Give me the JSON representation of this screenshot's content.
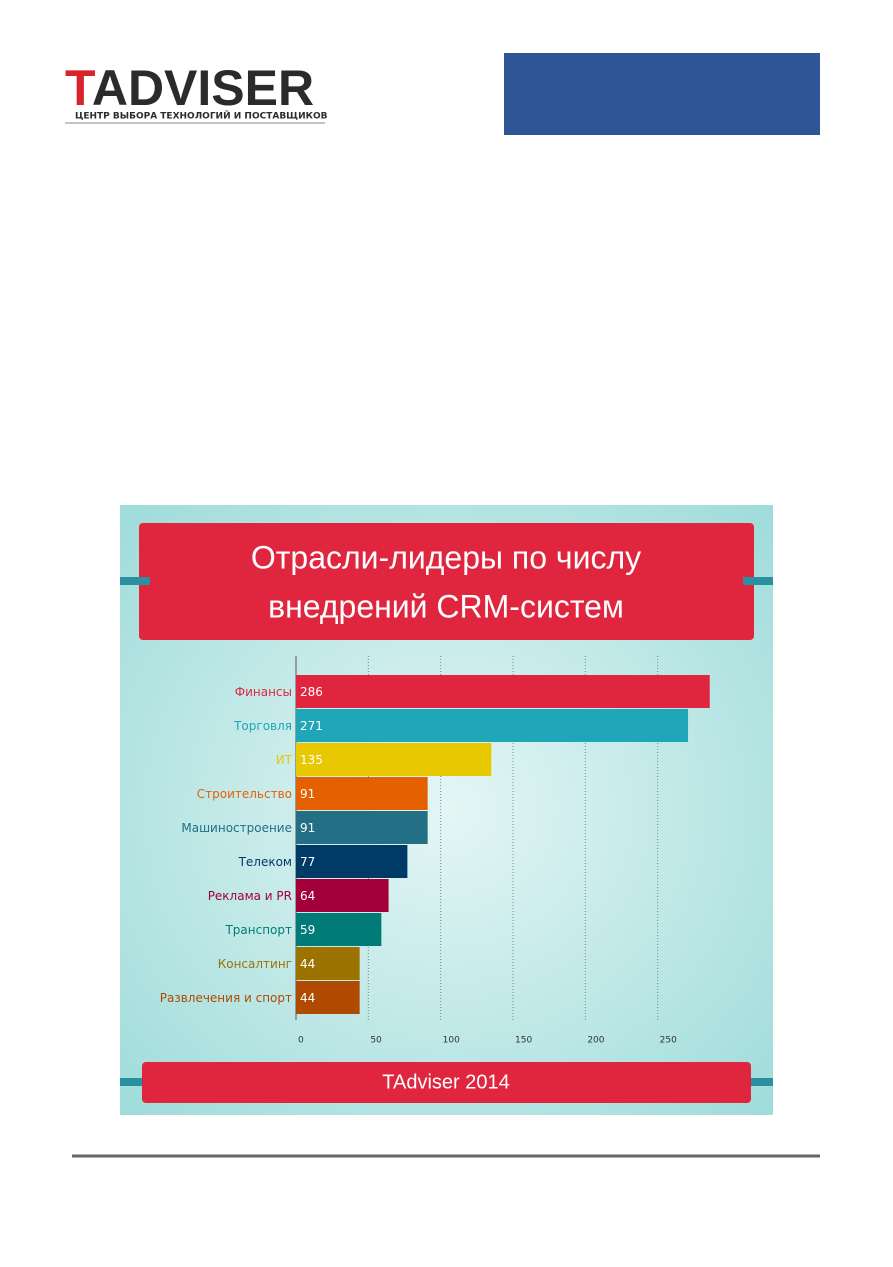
{
  "header": {
    "logo_first": "T",
    "logo_rest": "ADVISER",
    "logo_tagline": "ЦЕНТР ВЫБОРА ТЕХНОЛОГИЙ И ПОСТАВЩИКОВ"
  },
  "chart_data": {
    "type": "bar",
    "orientation": "horizontal",
    "title": [
      "Отрасли-лидеры по числу",
      "внедрений CRM-систем"
    ],
    "categories": [
      "Финансы",
      "Торговля",
      "ИТ",
      "Строительство",
      "Машиностроение",
      "Телеком",
      "Реклама и PR",
      "Транспорт",
      "Консалтинг",
      "Развлечения и спорт"
    ],
    "values": [
      286,
      271,
      135,
      91,
      91,
      77,
      64,
      59,
      44,
      44
    ],
    "colors": [
      "#e0263f",
      "#1fa6b8",
      "#e8c800",
      "#e56000",
      "#236f86",
      "#003a66",
      "#a3003a",
      "#007b78",
      "#9c7300",
      "#b04a00"
    ],
    "xlim": [
      0,
      300
    ],
    "xticks": [
      0,
      50,
      100,
      150,
      200,
      250
    ],
    "grid": true,
    "caption": "TAdviser 2014"
  }
}
